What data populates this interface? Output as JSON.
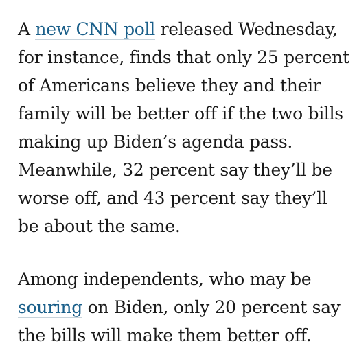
{
  "paragraphs": [
    {
      "segments": [
        {
          "text": "A ",
          "link": false
        },
        {
          "text": "new CNN poll",
          "link": true
        },
        {
          "text": " released Wednesday, for instance, finds that only 25 percent of Americans believe they and their family will be better off if the two bills making up Biden’s agenda pass. Meanwhile, 32 percent say they’ll be worse off, and 43 percent say they’ll be about the same.",
          "link": false
        }
      ]
    },
    {
      "segments": [
        {
          "text": "Among independents, who may be ",
          "link": false
        },
        {
          "text": "souring",
          "link": true
        },
        {
          "text": " on Biden, only 20 percent say the bills will make them better off.",
          "link": false
        }
      ]
    }
  ],
  "colors": {
    "text": "#1a1a1a",
    "link": "#1a5f8a",
    "link_underline": "#c7d3db",
    "background": "#ffffff"
  }
}
